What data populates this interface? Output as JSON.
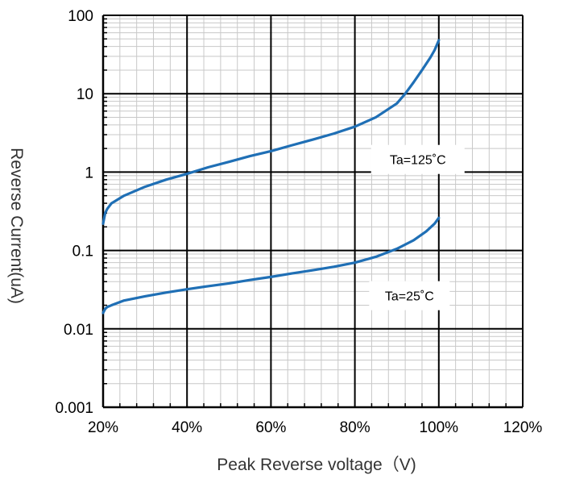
{
  "chart_data": {
    "type": "line",
    "title": "",
    "xlabel": "Peak Reverse voltage（V)",
    "ylabel": "Reverse Current(uA)",
    "x_ticks": [
      0.2,
      0.4,
      0.6,
      0.8,
      1.0,
      1.2
    ],
    "x_tick_labels": [
      "20%",
      "40%",
      "60%",
      "80%",
      "100%",
      "120%"
    ],
    "xlim": [
      0.2,
      1.2
    ],
    "y_scale": "log",
    "ylim": [
      0.001,
      100
    ],
    "y_ticks": [
      0.001,
      0.01,
      0.1,
      1,
      10,
      100
    ],
    "y_tick_labels": [
      "0.001",
      "0.01",
      "0.1",
      "1",
      "10",
      "100"
    ],
    "grid": true,
    "line_color": "#1f6fb5",
    "series": [
      {
        "x": [
          0.2,
          0.205,
          0.21,
          0.22,
          0.25,
          0.3,
          0.35,
          0.4,
          0.45,
          0.5,
          0.55,
          0.6,
          0.65,
          0.7,
          0.75,
          0.8,
          0.85,
          0.9,
          0.92,
          0.94,
          0.96,
          0.98,
          0.99,
          1.0
        ],
        "y": [
          0.22,
          0.3,
          0.34,
          0.4,
          0.5,
          0.65,
          0.8,
          0.95,
          1.15,
          1.35,
          1.6,
          1.85,
          2.2,
          2.6,
          3.1,
          3.8,
          5.0,
          7.5,
          10.0,
          14.0,
          20.0,
          29.0,
          36.0,
          48.0
        ]
      },
      {
        "x": [
          0.2,
          0.205,
          0.21,
          0.22,
          0.25,
          0.3,
          0.35,
          0.4,
          0.45,
          0.5,
          0.55,
          0.6,
          0.65,
          0.7,
          0.75,
          0.8,
          0.85,
          0.9,
          0.94,
          0.97,
          0.99,
          1.0
        ],
        "y": [
          0.016,
          0.018,
          0.019,
          0.02,
          0.023,
          0.026,
          0.029,
          0.032,
          0.035,
          0.038,
          0.042,
          0.046,
          0.051,
          0.056,
          0.062,
          0.07,
          0.083,
          0.105,
          0.135,
          0.175,
          0.22,
          0.26
        ]
      }
    ],
    "annotations": [
      {
        "text": "Ta=125˚C",
        "x": 0.95,
        "y": 1.45
      },
      {
        "text": "Ta=25˚C",
        "x": 0.93,
        "y": 0.0265
      }
    ]
  }
}
